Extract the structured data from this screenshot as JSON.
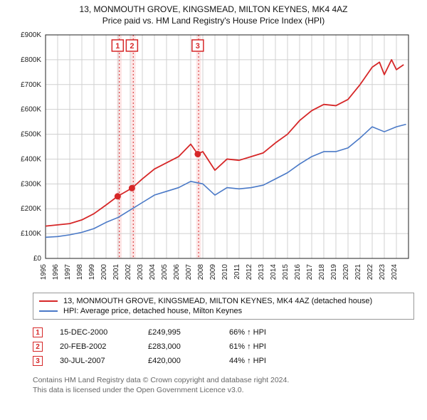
{
  "title_line1": "13, MONMOUTH GROVE, KINGSMEAD, MILTON KEYNES, MK4 4AZ",
  "title_line2": "Price paid vs. HM Land Registry's House Price Index (HPI)",
  "chart": {
    "type": "line",
    "plot_bg": "#ffffff",
    "grid_color": "#d0d0d0",
    "axis_color": "#222222",
    "y": {
      "min": 0,
      "max": 900000,
      "ticks": [
        0,
        100000,
        200000,
        300000,
        400000,
        500000,
        600000,
        700000,
        800000,
        900000
      ],
      "tick_labels": [
        "£0",
        "£100K",
        "£200K",
        "£300K",
        "£400K",
        "£500K",
        "£600K",
        "£700K",
        "£800K",
        "£900K"
      ],
      "label_fontsize": 10
    },
    "x": {
      "min": 1995,
      "max": 2025,
      "ticks": [
        1995,
        1996,
        1997,
        1998,
        1999,
        2000,
        2001,
        2002,
        2003,
        2004,
        2005,
        2006,
        2007,
        2008,
        2009,
        2010,
        2011,
        2012,
        2013,
        2014,
        2015,
        2016,
        2017,
        2018,
        2019,
        2020,
        2021,
        2022,
        2023,
        2024
      ],
      "label_fontsize": 10
    },
    "highlight_bands": [
      {
        "x": 2000.9,
        "w": 0.4,
        "color": "#fde6e6"
      },
      {
        "x": 2002.05,
        "w": 0.4,
        "color": "#fde6e6"
      },
      {
        "x": 2007.45,
        "w": 0.4,
        "color": "#fde6e6"
      }
    ],
    "markers": [
      {
        "n": "1",
        "x": 2000.96,
        "y": 249995,
        "box_y": 880000
      },
      {
        "n": "2",
        "x": 2002.14,
        "y": 283000,
        "box_y": 880000
      },
      {
        "n": "3",
        "x": 2007.58,
        "y": 420000,
        "box_y": 880000
      }
    ],
    "series": [
      {
        "name": "property",
        "color": "#d62728",
        "width": 1.8,
        "points": [
          [
            1995,
            130000
          ],
          [
            1996,
            135000
          ],
          [
            1997,
            140000
          ],
          [
            1998,
            155000
          ],
          [
            1999,
            180000
          ],
          [
            2000,
            215000
          ],
          [
            2000.96,
            249995
          ],
          [
            2002.14,
            283000
          ],
          [
            2003,
            320000
          ],
          [
            2004,
            360000
          ],
          [
            2005,
            385000
          ],
          [
            2006,
            410000
          ],
          [
            2007,
            460000
          ],
          [
            2007.58,
            420000
          ],
          [
            2008,
            430000
          ],
          [
            2009,
            355000
          ],
          [
            2010,
            400000
          ],
          [
            2011,
            395000
          ],
          [
            2012,
            410000
          ],
          [
            2013,
            425000
          ],
          [
            2014,
            465000
          ],
          [
            2015,
            500000
          ],
          [
            2016,
            555000
          ],
          [
            2017,
            595000
          ],
          [
            2018,
            620000
          ],
          [
            2019,
            615000
          ],
          [
            2020,
            640000
          ],
          [
            2021,
            700000
          ],
          [
            2022,
            770000
          ],
          [
            2022.6,
            790000
          ],
          [
            2023,
            740000
          ],
          [
            2023.6,
            800000
          ],
          [
            2024,
            760000
          ],
          [
            2024.6,
            780000
          ]
        ]
      },
      {
        "name": "hpi",
        "color": "#4a79c7",
        "width": 1.6,
        "points": [
          [
            1995,
            85000
          ],
          [
            1996,
            88000
          ],
          [
            1997,
            95000
          ],
          [
            1998,
            105000
          ],
          [
            1999,
            120000
          ],
          [
            2000,
            145000
          ],
          [
            2001,
            165000
          ],
          [
            2002,
            195000
          ],
          [
            2003,
            225000
          ],
          [
            2004,
            255000
          ],
          [
            2005,
            270000
          ],
          [
            2006,
            285000
          ],
          [
            2007,
            310000
          ],
          [
            2008,
            300000
          ],
          [
            2009,
            255000
          ],
          [
            2010,
            285000
          ],
          [
            2011,
            280000
          ],
          [
            2012,
            285000
          ],
          [
            2013,
            295000
          ],
          [
            2014,
            320000
          ],
          [
            2015,
            345000
          ],
          [
            2016,
            380000
          ],
          [
            2017,
            410000
          ],
          [
            2018,
            430000
          ],
          [
            2019,
            430000
          ],
          [
            2020,
            445000
          ],
          [
            2021,
            485000
          ],
          [
            2022,
            530000
          ],
          [
            2023,
            510000
          ],
          [
            2024,
            530000
          ],
          [
            2024.8,
            540000
          ]
        ]
      }
    ]
  },
  "legend": {
    "items": [
      {
        "color": "#d62728",
        "label": "13, MONMOUTH GROVE, KINGSMEAD, MILTON KEYNES, MK4 4AZ (detached house)"
      },
      {
        "color": "#4a79c7",
        "label": "HPI: Average price, detached house, Milton Keynes"
      }
    ]
  },
  "sales": [
    {
      "n": "1",
      "date": "15-DEC-2000",
      "price": "£249,995",
      "delta": "66% ↑ HPI"
    },
    {
      "n": "2",
      "date": "20-FEB-2002",
      "price": "£283,000",
      "delta": "61% ↑ HPI"
    },
    {
      "n": "3",
      "date": "30-JUL-2007",
      "price": "£420,000",
      "delta": "44% ↑ HPI"
    }
  ],
  "footer_line1": "Contains HM Land Registry data © Crown copyright and database right 2024.",
  "footer_line2": "This data is licensed under the Open Government Licence v3.0."
}
